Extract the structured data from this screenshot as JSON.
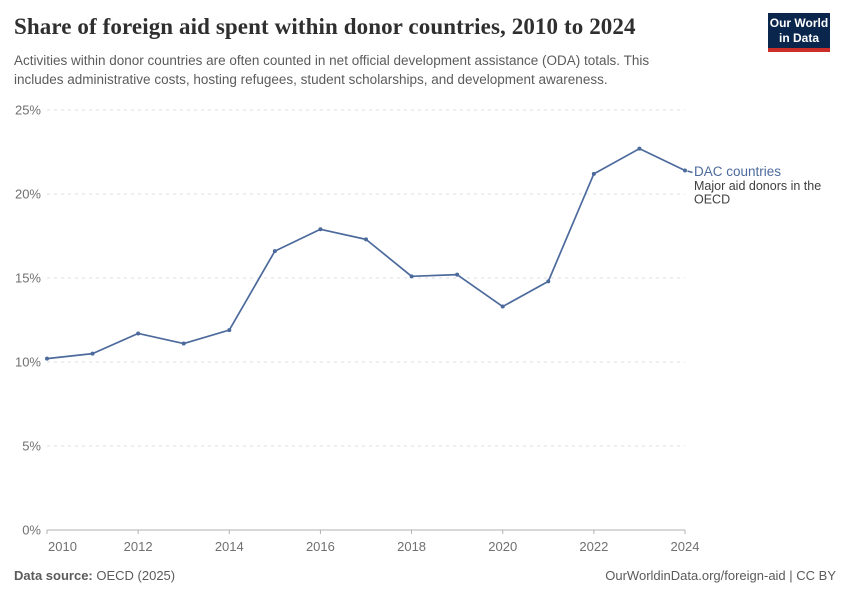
{
  "header": {
    "title": "Share of foreign aid spent within donor countries, 2010 to 2024",
    "subtitle_lines": [
      "Activities within donor countries are often counted in net official development assistance (ODA) totals. This",
      "includes administrative costs, hosting refugees, student scholarships, and development awareness."
    ],
    "logo": {
      "line1": "Our World",
      "line2": "in Data"
    }
  },
  "chart_data": {
    "type": "line",
    "title": "Share of foreign aid spent within donor countries, 2010 to 2024",
    "x": [
      2010,
      2011,
      2012,
      2013,
      2014,
      2015,
      2016,
      2017,
      2018,
      2019,
      2020,
      2021,
      2022,
      2023,
      2024
    ],
    "series": [
      {
        "name": "DAC countries",
        "annotation_lines": [
          "Major aid donors in the",
          "OECD"
        ],
        "color": "#4C6A9C",
        "values": [
          10.2,
          10.5,
          11.7,
          11.1,
          11.9,
          16.6,
          17.9,
          17.3,
          15.1,
          15.2,
          13.3,
          14.8,
          21.2,
          22.7,
          21.4
        ]
      }
    ],
    "xlim": [
      2010,
      2024
    ],
    "ylim": [
      0,
      25
    ],
    "y_ticks": [
      {
        "value": 0,
        "label": "0%"
      },
      {
        "value": 5,
        "label": "5%"
      },
      {
        "value": 10,
        "label": "10%"
      },
      {
        "value": 15,
        "label": "15%"
      },
      {
        "value": 20,
        "label": "20%"
      },
      {
        "value": 25,
        "label": "25%"
      }
    ],
    "x_ticks": [
      {
        "value": 2010,
        "label": "2010"
      },
      {
        "value": 2012,
        "label": "2012"
      },
      {
        "value": 2014,
        "label": "2014"
      },
      {
        "value": 2016,
        "label": "2016"
      },
      {
        "value": 2018,
        "label": "2018"
      },
      {
        "value": 2020,
        "label": "2020"
      },
      {
        "value": 2022,
        "label": "2022"
      },
      {
        "value": 2024,
        "label": "2024"
      }
    ],
    "grid": "horizontal-dashed",
    "legend_position": "end-of-line"
  },
  "footer": {
    "source_label": "Data source:",
    "source_value": " OECD (2025)",
    "attribution": "OurWorldinData.org/foreign-aid | CC BY"
  },
  "colors": {
    "accent_line": "#4C6A9C",
    "annotation_text": "#3f3f3f",
    "axis_text": "#707070",
    "gridline": "#dcdcdc",
    "axis_line": "#b0b0b0",
    "logo_bg": "#0a264d",
    "logo_stripe": "#cd2d28"
  }
}
